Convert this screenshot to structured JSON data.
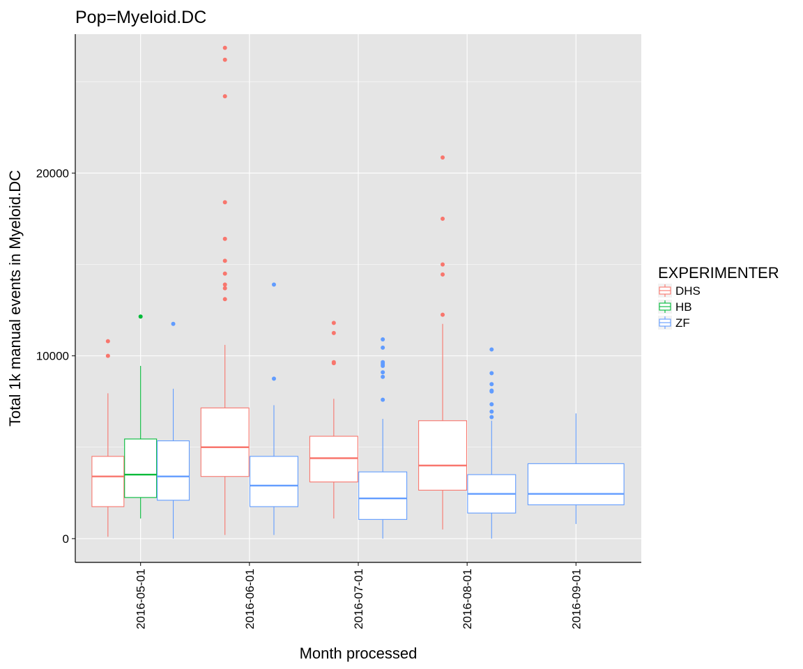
{
  "chart_data": {
    "type": "boxplot",
    "title": "Pop=Myeloid.DC",
    "xlabel": "Month processed",
    "ylabel": "Total 1k manual events in Myeloid.DC",
    "categories": [
      "2016-05-01",
      "2016-06-01",
      "2016-07-01",
      "2016-08-01",
      "2016-09-01"
    ],
    "ylim": [
      -1300,
      27600
    ],
    "yticks": [
      0,
      10000,
      20000
    ],
    "ytick_labels": [
      "0",
      "10000",
      "20000"
    ],
    "grid": true,
    "legend": {
      "title": "EXPERIMENTER",
      "position": "right",
      "entries": [
        "DHS",
        "HB",
        "ZF"
      ]
    },
    "colors": {
      "DHS": "#F8766D",
      "HB": "#00BA38",
      "ZF": "#619CFF",
      "panel": "#E5E5E5",
      "grid": "#FFFFFF"
    },
    "series": [
      {
        "name": "DHS",
        "boxes": [
          {
            "category": "2016-05-01",
            "q1": 1750,
            "median": 3400,
            "q3": 4500,
            "whisker_low": 100,
            "whisker_high": 7950,
            "outliers": [
              10000,
              10800
            ]
          },
          {
            "category": "2016-06-01",
            "q1": 3400,
            "median": 5000,
            "q3": 7150,
            "whisker_low": 200,
            "whisker_high": 10600,
            "outliers": [
              13100,
              13700,
              13900,
              14500,
              15200,
              16400,
              18400,
              24200,
              26200,
              26850
            ]
          },
          {
            "category": "2016-07-01",
            "q1": 3100,
            "median": 4400,
            "q3": 5600,
            "whisker_low": 1100,
            "whisker_high": 7650,
            "outliers": [
              9600,
              9650,
              11250,
              11800
            ]
          },
          {
            "category": "2016-08-01",
            "q1": 2650,
            "median": 4000,
            "q3": 6450,
            "whisker_low": 500,
            "whisker_high": 11750,
            "outliers": [
              12250,
              14450,
              15000,
              17500,
              20850
            ]
          }
        ]
      },
      {
        "name": "HB",
        "boxes": [
          {
            "category": "2016-05-01",
            "q1": 2250,
            "median": 3500,
            "q3": 5450,
            "whisker_low": 1100,
            "whisker_high": 9450,
            "outliers": [
              12150
            ]
          }
        ]
      },
      {
        "name": "ZF",
        "boxes": [
          {
            "category": "2016-05-01",
            "q1": 2100,
            "median": 3400,
            "q3": 5350,
            "whisker_low": 0,
            "whisker_high": 8200,
            "outliers": [
              11750
            ]
          },
          {
            "category": "2016-06-01",
            "q1": 1750,
            "median": 2900,
            "q3": 4500,
            "whisker_low": 200,
            "whisker_high": 7300,
            "outliers": [
              8750,
              13900
            ]
          },
          {
            "category": "2016-07-01",
            "q1": 1050,
            "median": 2200,
            "q3": 3650,
            "whisker_low": 0,
            "whisker_high": 6550,
            "outliers": [
              7600,
              8850,
              9100,
              9450,
              9550,
              9650,
              10450,
              10900
            ]
          },
          {
            "category": "2016-08-01",
            "q1": 1400,
            "median": 2450,
            "q3": 3500,
            "whisker_low": 0,
            "whisker_high": 6450,
            "outliers": [
              6650,
              6950,
              7350,
              8050,
              8100,
              8450,
              9050,
              10350
            ]
          },
          {
            "category": "2016-09-01",
            "q1": 1850,
            "median": 2450,
            "q3": 4100,
            "whisker_low": 800,
            "whisker_high": 6850,
            "outliers": []
          }
        ]
      }
    ]
  }
}
